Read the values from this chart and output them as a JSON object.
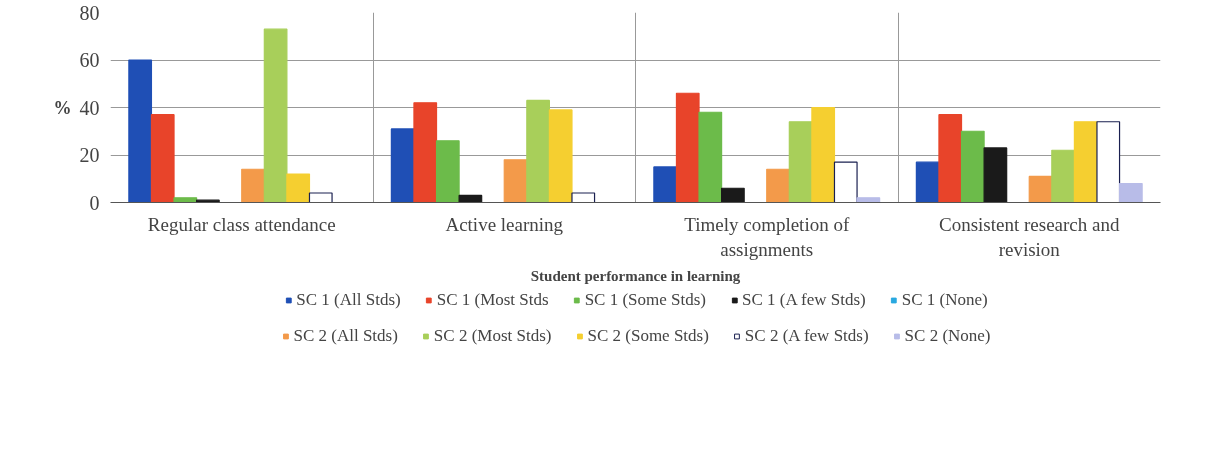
{
  "chart_data": {
    "type": "bar",
    "xlabel": "Student performance in learning",
    "ylabel": "%",
    "categories": [
      "Regular class attendance",
      "Active learning",
      "Timely completion of assignments",
      "Consistent research and revision"
    ],
    "series": [
      {
        "name": "SC 1 (All Stds)",
        "color": "#1f4fb5",
        "values": [
          60,
          31,
          15,
          17
        ]
      },
      {
        "name": "SC 1 (Most Stds",
        "color": "#e8442a",
        "values": [
          37,
          42,
          46,
          37
        ]
      },
      {
        "name": "SC 1 (Some Stds)",
        "color": "#6cbb4a",
        "values": [
          2,
          26,
          38,
          30
        ]
      },
      {
        "name": "SC 1 (A few Stds)",
        "color": "#1a1a1a",
        "values": [
          1,
          3,
          6,
          23
        ]
      },
      {
        "name": "SC 1 (None)",
        "color": "#29a8e0",
        "values": [
          0,
          0,
          0,
          0
        ]
      },
      {
        "name": "SC 2 (All Stds)",
        "color": "#f39a4a",
        "values": [
          14,
          18,
          14,
          11
        ]
      },
      {
        "name": "SC 2 (Most Stds)",
        "color": "#a8cf5a",
        "values": [
          73,
          43,
          34,
          22
        ]
      },
      {
        "name": "SC 2 (Some Stds)",
        "color": "#f5cf30",
        "values": [
          12,
          39,
          40,
          34
        ]
      },
      {
        "name": "SC 2 (A few Stds)",
        "color": "#ffffff",
        "values": [
          4,
          4,
          17,
          34
        ]
      },
      {
        "name": "SC 2 (None)",
        "color": "#b8bce8",
        "values": [
          0,
          0,
          2,
          8
        ]
      }
    ],
    "ylim": [
      0,
      80
    ],
    "yticks": [
      0,
      20,
      40,
      60,
      80
    ],
    "grid": true,
    "legend": "bottom"
  }
}
